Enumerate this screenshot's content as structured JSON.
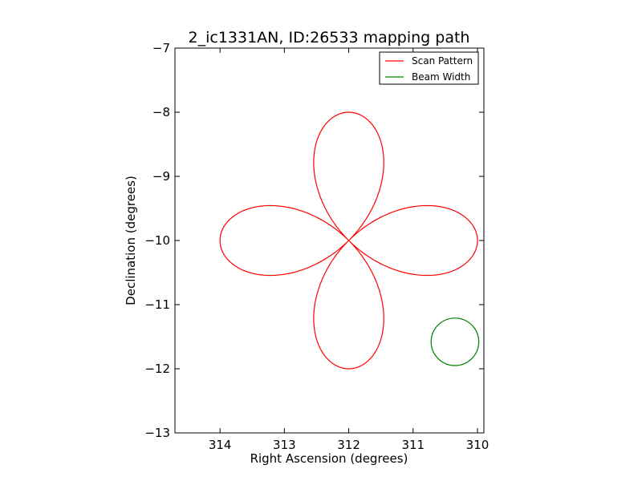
{
  "chart_data": {
    "type": "line",
    "title": "2_ic1331AN, ID:26533 mapping path",
    "xlabel": "Right Ascension (degrees)",
    "ylabel": "Declination (degrees)",
    "xlim": [
      314.7,
      309.9
    ],
    "ylim": [
      -13,
      -7
    ],
    "x_inverted": true,
    "xticks": [
      314,
      313,
      312,
      311,
      310
    ],
    "yticks": [
      -13,
      -12,
      -11,
      -10,
      -9,
      -8,
      -7
    ],
    "grid": false,
    "legend_position": "top-right",
    "legend": [
      {
        "label": "Scan Pattern",
        "color": "#ff0000"
      },
      {
        "label": "Beam Width",
        "color": "#008000"
      }
    ],
    "series": [
      {
        "name": "Scan Pattern",
        "color": "#ff0000",
        "shape": "four-petal rose curve",
        "center": [
          312,
          -10
        ],
        "petal_radius_deg": 2.0,
        "petal_directions": [
          "north",
          "south",
          "east",
          "west"
        ]
      },
      {
        "name": "Beam Width",
        "color": "#008000",
        "shape": "circle",
        "center": [
          310.35,
          -11.58
        ],
        "radius_deg": 0.37
      }
    ]
  }
}
